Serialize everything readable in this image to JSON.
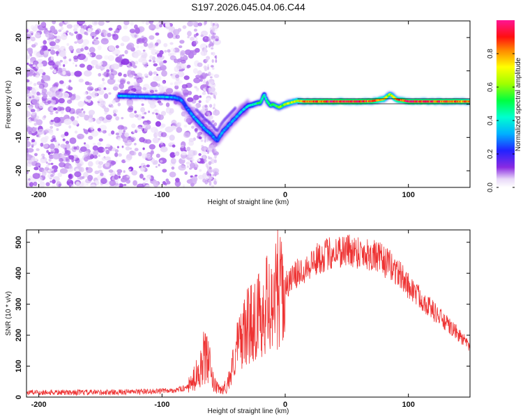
{
  "figure": {
    "title": "S197.2026.045.04.06.C44"
  },
  "chart_data": [
    {
      "type": "heatmap",
      "title": "S197.2026.045.04.06.C44",
      "xlabel": "Height of straight line (km)",
      "ylabel": "Frequency (Hz)",
      "xlim": [
        -210,
        150
      ],
      "ylim": [
        -25,
        25
      ],
      "x_ticks": [
        -200,
        -100,
        0,
        100
      ],
      "x_tick_labels": [
        "-200",
        "-100",
        "0",
        "100"
      ],
      "y_ticks": [
        -20,
        -10,
        0,
        10,
        20
      ],
      "y_tick_labels": [
        "-20",
        "-10",
        "0",
        "10",
        "20"
      ],
      "colorbar": {
        "label": "Normalized spectral amplitude",
        "range": [
          0,
          1
        ],
        "ticks": [
          0.0,
          0.2,
          0.4,
          0.6,
          0.8
        ],
        "tick_labels": [
          "0.0",
          "0.2",
          "0.4",
          "0.6",
          "0.8"
        ],
        "colormap": "rainbow-with-white"
      },
      "ridge": {
        "description": "dominant frequency track",
        "x": [
          -135,
          -120,
          -100,
          -90,
          -85,
          -80,
          -75,
          -70,
          -65,
          -60,
          -57,
          -55,
          -52,
          -50,
          -45,
          -40,
          -35,
          -30,
          -25,
          -20,
          -17,
          -15,
          -12,
          -10,
          -5,
          0,
          5,
          10,
          15,
          20,
          40,
          60,
          70,
          80,
          85,
          90,
          100,
          120,
          140,
          150
        ],
        "y": [
          2.5,
          2.3,
          2.2,
          2.0,
          1.5,
          -1,
          -3.5,
          -5.5,
          -7.5,
          -9,
          -10.5,
          -11,
          -9,
          -8,
          -6,
          -4,
          -2,
          -0.5,
          0,
          0.5,
          3,
          1,
          -0.5,
          0,
          -1,
          0,
          0.5,
          1,
          0.8,
          0.8,
          0.8,
          0.8,
          0.9,
          1.5,
          3,
          1.5,
          0.8,
          0.8,
          0.8,
          0.8
        ],
        "amplitude": [
          0.35,
          0.3,
          0.35,
          0.3,
          0.3,
          0.25,
          0.3,
          0.35,
          0.3,
          0.3,
          0.3,
          0.25,
          0.3,
          0.3,
          0.3,
          0.3,
          0.35,
          0.4,
          0.45,
          0.5,
          0.4,
          0.5,
          0.45,
          0.5,
          0.55,
          0.6,
          0.65,
          0.7,
          0.8,
          0.85,
          0.9,
          0.9,
          0.88,
          0.75,
          0.6,
          0.8,
          0.9,
          0.88,
          0.85,
          0.8
        ]
      },
      "noise": {
        "description": "scattered low-amplitude speckle, dense for x < -70 km",
        "x_extent": [
          -210,
          -55
        ],
        "amplitude_range": [
          0.02,
          0.12
        ]
      }
    },
    {
      "type": "line",
      "xlabel": "Height of straight line (km)",
      "ylabel": "SNR (10 * v/v)",
      "xlim": [
        -210,
        150
      ],
      "ylim": [
        0,
        540
      ],
      "x_ticks": [
        -200,
        -100,
        0,
        100
      ],
      "x_tick_labels": [
        "-200",
        "-100",
        "0",
        "100"
      ],
      "y_ticks": [
        0,
        100,
        200,
        300,
        400,
        500
      ],
      "y_tick_labels": [
        "0",
        "100",
        "200",
        "300",
        "400",
        "500"
      ],
      "series": [
        {
          "name": "SNR",
          "color": "#ee3333",
          "envelope_x": [
            -210,
            -150,
            -110,
            -90,
            -80,
            -75,
            -70,
            -66,
            -62,
            -58,
            -54,
            -50,
            -45,
            -40,
            -35,
            -30,
            -25,
            -20,
            -15,
            -10,
            -5,
            0,
            10,
            20,
            30,
            40,
            50,
            60,
            70,
            80,
            90,
            100,
            110,
            120,
            130,
            140,
            150
          ],
          "envelope_y": [
            15,
            15,
            18,
            22,
            30,
            50,
            90,
            130,
            110,
            40,
            25,
            25,
            60,
            150,
            200,
            230,
            250,
            270,
            300,
            320,
            330,
            360,
            400,
            430,
            455,
            470,
            475,
            470,
            460,
            440,
            410,
            360,
            320,
            280,
            240,
            205,
            160
          ],
          "spikes": [
            {
              "x": -6,
              "y": 540
            },
            {
              "x": -13,
              "y": 430
            },
            {
              "x": -66,
              "y": 180
            },
            {
              "x": -28,
              "y": 360
            },
            {
              "x": 43,
              "y": 500
            }
          ]
        }
      ]
    }
  ],
  "colors": {
    "frame": "#000000",
    "line": "#ee3333",
    "ridge_guide": "#000000"
  }
}
